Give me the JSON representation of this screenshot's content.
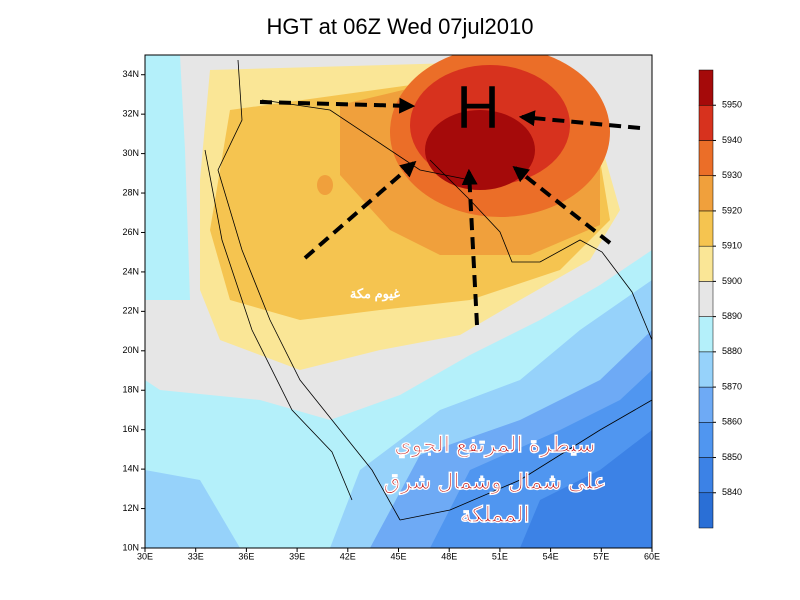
{
  "title": "HGT at 06Z Wed 07jul2010",
  "map": {
    "lonlim": [
      30,
      60
    ],
    "latlim": [
      10,
      35
    ],
    "lon_ticks": [
      {
        "value": 30,
        "label": "30E"
      },
      {
        "value": 33,
        "label": "33E"
      },
      {
        "value": 36,
        "label": "36E"
      },
      {
        "value": 39,
        "label": "39E"
      },
      {
        "value": 42,
        "label": "42E"
      },
      {
        "value": 45,
        "label": "45E"
      },
      {
        "value": 48,
        "label": "48E"
      },
      {
        "value": 51,
        "label": "51E"
      },
      {
        "value": 54,
        "label": "54E"
      },
      {
        "value": 57,
        "label": "57E"
      },
      {
        "value": 60,
        "label": "60E"
      }
    ],
    "lat_ticks": [
      {
        "value": 10,
        "label": "10N"
      },
      {
        "value": 12,
        "label": "12N"
      },
      {
        "value": 14,
        "label": "14N"
      },
      {
        "value": 16,
        "label": "16N"
      },
      {
        "value": 18,
        "label": "18N"
      },
      {
        "value": 20,
        "label": "20N"
      },
      {
        "value": 22,
        "label": "22N"
      },
      {
        "value": 24,
        "label": "24N"
      },
      {
        "value": 26,
        "label": "26N"
      },
      {
        "value": 28,
        "label": "28N"
      },
      {
        "value": 30,
        "label": "30N"
      },
      {
        "value": 32,
        "label": "32N"
      },
      {
        "value": 34,
        "label": "34N"
      }
    ]
  },
  "colorbar": {
    "levels": [
      5840,
      5850,
      5860,
      5870,
      5880,
      5890,
      5900,
      5910,
      5920,
      5930,
      5940,
      5950
    ],
    "colors": [
      "#2a6fd6",
      "#3c82e6",
      "#5096f0",
      "#6eaaf5",
      "#96d2fa",
      "#b4f0fa",
      "#e6e6e6",
      "#fae696",
      "#f5c450",
      "#f0a03c",
      "#eb6e28",
      "#d7321e",
      "#a50a0a"
    ]
  },
  "annotations": {
    "high": "H",
    "place": "غيوم مكة",
    "note": [
      "سيطرة المرتفع الجوي",
      "على شمال وشمال شرق",
      "المملكة"
    ]
  }
}
